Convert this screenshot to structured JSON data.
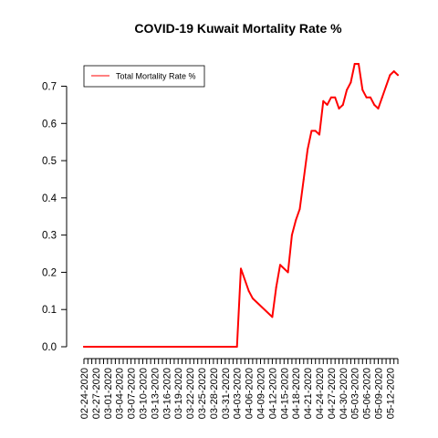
{
  "chart_data": {
    "type": "line",
    "title": "COVID-19 Kuwait Mortality Rate %",
    "xlabel": "",
    "ylabel": "",
    "ylim": [
      0,
      0.76
    ],
    "y_ticks": [
      0.0,
      0.1,
      0.2,
      0.3,
      0.4,
      0.5,
      0.6,
      0.7
    ],
    "x_tick_labels": [
      "02-24-2020",
      "02-27-2020",
      "03-01-2020",
      "03-04-2020",
      "03-07-2020",
      "03-10-2020",
      "03-13-2020",
      "03-16-2020",
      "03-19-2020",
      "03-22-2020",
      "03-25-2020",
      "03-28-2020",
      "03-31-2020",
      "04-03-2020",
      "04-06-2020",
      "04-09-2020",
      "04-12-2020",
      "04-15-2020",
      "04-18-2020",
      "04-21-2020",
      "04-24-2020",
      "04-27-2020",
      "04-30-2020",
      "05-03-2020",
      "05-06-2020",
      "05-09-2020",
      "05-12-2020"
    ],
    "legend": {
      "position": "top-left"
    },
    "colors": {
      "series": "#ff0000"
    },
    "series": [
      {
        "name": "Total Mortality Rate %",
        "x": [
          "02-24-2020",
          "04-03-2020",
          "04-04-2020",
          "04-06-2020",
          "04-07-2020",
          "04-12-2020",
          "04-13-2020",
          "04-14-2020",
          "04-16-2020",
          "04-17-2020",
          "04-18-2020",
          "04-19-2020",
          "04-20-2020",
          "04-21-2020",
          "04-22-2020",
          "04-23-2020",
          "04-24-2020",
          "04-25-2020",
          "04-26-2020",
          "04-27-2020",
          "04-28-2020",
          "04-29-2020",
          "04-30-2020",
          "05-01-2020",
          "05-02-2020",
          "05-03-2020",
          "05-04-2020",
          "05-05-2020",
          "05-06-2020",
          "05-07-2020",
          "05-08-2020",
          "05-09-2020",
          "05-10-2020",
          "05-11-2020",
          "05-12-2020",
          "05-13-2020",
          "05-14-2020"
        ],
        "values": [
          0.0,
          0.0,
          0.21,
          0.15,
          0.13,
          0.08,
          0.16,
          0.22,
          0.2,
          0.3,
          0.34,
          0.37,
          0.45,
          0.53,
          0.58,
          0.58,
          0.57,
          0.66,
          0.65,
          0.67,
          0.67,
          0.64,
          0.65,
          0.69,
          0.71,
          0.76,
          0.76,
          0.69,
          0.67,
          0.67,
          0.65,
          0.64,
          0.67,
          0.7,
          0.73,
          0.74,
          0.73
        ]
      }
    ]
  }
}
